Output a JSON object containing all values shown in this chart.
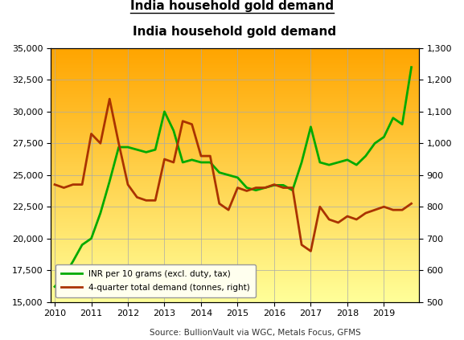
{
  "title": "India household gold demand",
  "source_text": "Source: BullionVault via WGC, Metals Focus, GFMS",
  "bg_color_top": "#FFA500",
  "bg_color_bottom": "#FFFF99",
  "left_ylim": [
    15000,
    35000
  ],
  "right_ylim": [
    500,
    1300
  ],
  "left_yticks": [
    15000,
    17500,
    20000,
    22500,
    25000,
    27500,
    30000,
    32500,
    35000
  ],
  "right_yticks": [
    500,
    600,
    700,
    800,
    900,
    1000,
    1100,
    1200,
    1300
  ],
  "xticks": [
    2010,
    2011,
    2012,
    2013,
    2014,
    2015,
    2016,
    2017,
    2018,
    2019
  ],
  "xlim": [
    2009.9,
    2019.95
  ],
  "green_line_color": "#00AA00",
  "brown_line_color": "#AA3300",
  "legend_label_green": "INR per 10 grams (excl. duty, tax)",
  "legend_label_brown": "4-quarter total demand (tonnes, right)",
  "green_x": [
    2010.0,
    2010.25,
    2010.5,
    2010.75,
    2011.0,
    2011.25,
    2011.5,
    2011.75,
    2012.0,
    2012.25,
    2012.5,
    2012.75,
    2013.0,
    2013.25,
    2013.5,
    2013.75,
    2014.0,
    2014.25,
    2014.5,
    2014.75,
    2015.0,
    2015.25,
    2015.5,
    2015.75,
    2016.0,
    2016.25,
    2016.5,
    2016.75,
    2017.0,
    2017.25,
    2017.5,
    2017.75,
    2018.0,
    2018.25,
    2018.5,
    2018.75,
    2019.0,
    2019.25,
    2019.5,
    2019.75
  ],
  "green_y": [
    16200,
    17000,
    18200,
    19500,
    20000,
    22000,
    24500,
    27200,
    27200,
    27000,
    26800,
    27000,
    30000,
    28500,
    26000,
    26200,
    26000,
    26000,
    25200,
    25000,
    24800,
    24000,
    23800,
    24000,
    24200,
    24200,
    23800,
    26000,
    28800,
    26000,
    25800,
    26000,
    26200,
    25800,
    26500,
    27500,
    28000,
    29500,
    29000,
    33500
  ],
  "brown_x": [
    2010.0,
    2010.25,
    2010.5,
    2010.75,
    2011.0,
    2011.25,
    2011.5,
    2011.75,
    2012.0,
    2012.25,
    2012.5,
    2012.75,
    2013.0,
    2013.25,
    2013.5,
    2013.75,
    2014.0,
    2014.25,
    2014.5,
    2014.75,
    2015.0,
    2015.25,
    2015.5,
    2015.75,
    2016.0,
    2016.25,
    2016.5,
    2016.75,
    2017.0,
    2017.25,
    2017.5,
    2017.75,
    2018.0,
    2018.25,
    2018.5,
    2018.75,
    2019.0,
    2019.25,
    2019.5,
    2019.75
  ],
  "brown_y": [
    870,
    860,
    870,
    870,
    1030,
    1000,
    1140,
    1000,
    870,
    830,
    820,
    820,
    950,
    940,
    1070,
    1060,
    960,
    960,
    810,
    790,
    860,
    850,
    860,
    860,
    870,
    860,
    860,
    680,
    660,
    800,
    760,
    750,
    770,
    760,
    780,
    790,
    800,
    790,
    790,
    810
  ]
}
